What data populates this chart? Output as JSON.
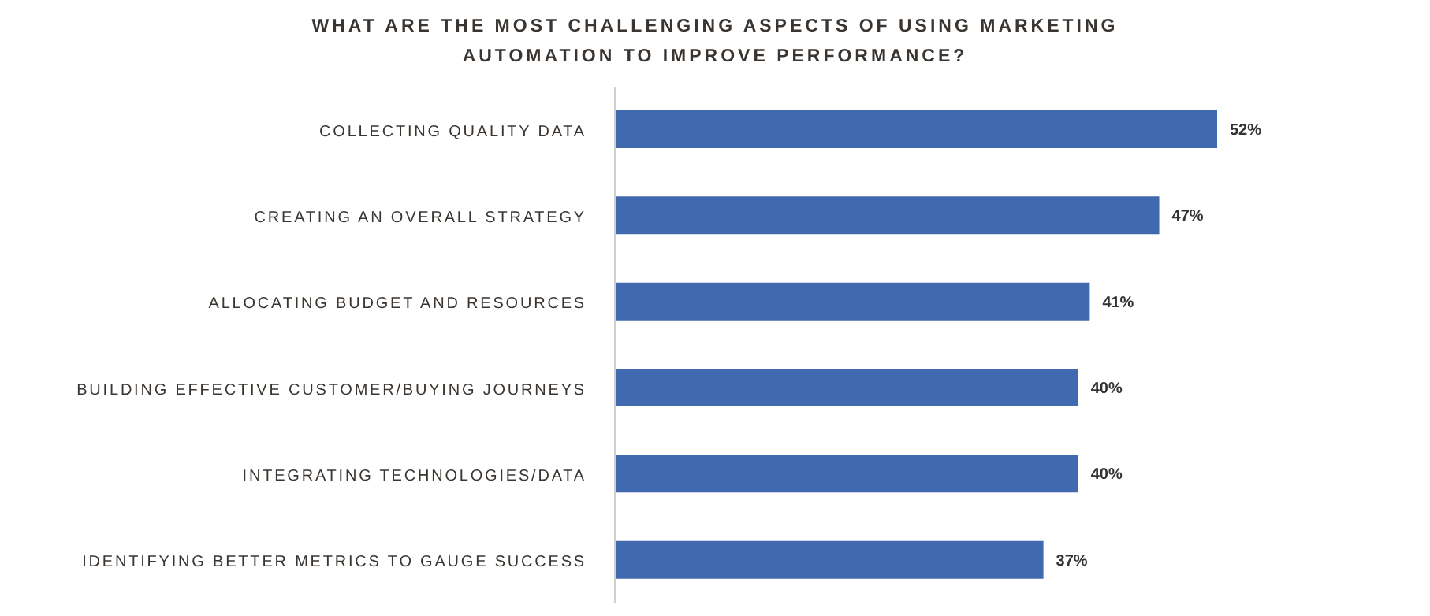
{
  "chart_data": {
    "type": "bar",
    "orientation": "horizontal",
    "title": "WHAT ARE THE MOST CHALLENGING ASPECTS OF USING MARKETING AUTOMATION TO IMPROVE PERFORMANCE?",
    "categories": [
      "COLLECTING QUALITY DATA",
      "CREATING AN OVERALL STRATEGY",
      "ALLOCATING BUDGET AND RESOURCES",
      "BUILDING EFFECTIVE CUSTOMER/BUYING JOURNEYS",
      "INTEGRATING TECHNOLOGIES/DATA",
      "IDENTIFYING BETTER METRICS TO GAUGE SUCCESS"
    ],
    "values": [
      52,
      47,
      41,
      40,
      40,
      37
    ],
    "value_labels": [
      "52%",
      "47%",
      "41%",
      "40%",
      "40%",
      "37%"
    ],
    "color": "#4169b0"
  }
}
